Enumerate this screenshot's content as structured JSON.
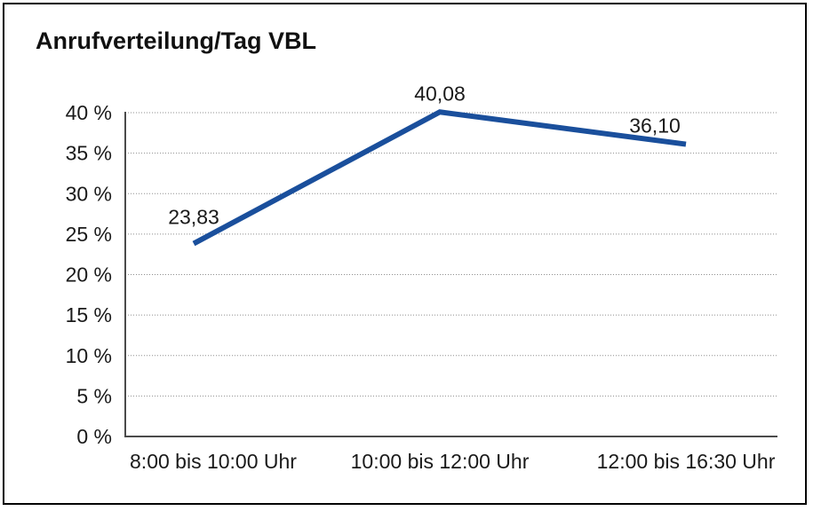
{
  "title": "Anrufverteilung/Tag VBL",
  "colors": {
    "line": "#1A4F9C",
    "grid": "#8F8F8F",
    "axis": "#4A4A4A",
    "text": "#1A1A1A",
    "background": "#FFFFFF",
    "border": "#000000"
  },
  "chart_data": {
    "type": "line",
    "title": "Anrufverteilung/Tag VBL",
    "categories": [
      "8:00 bis 10:00 Uhr",
      "10:00 bis 12:00 Uhr",
      "12:00 bis 16:30 Uhr"
    ],
    "values": [
      23.83,
      40.08,
      36.1
    ],
    "value_labels": [
      "23,83",
      "40,08",
      "36,10"
    ],
    "xlabel": "",
    "ylabel": "",
    "ylim": [
      0,
      40
    ],
    "ytick_step": 5,
    "ytick_labels": [
      "0 %",
      "5 %",
      "10 %",
      "15 %",
      "20 %",
      "25 %",
      "30 %",
      "35 %",
      "40 %"
    ],
    "grid": "horizontal-dotted",
    "legend": "none"
  }
}
